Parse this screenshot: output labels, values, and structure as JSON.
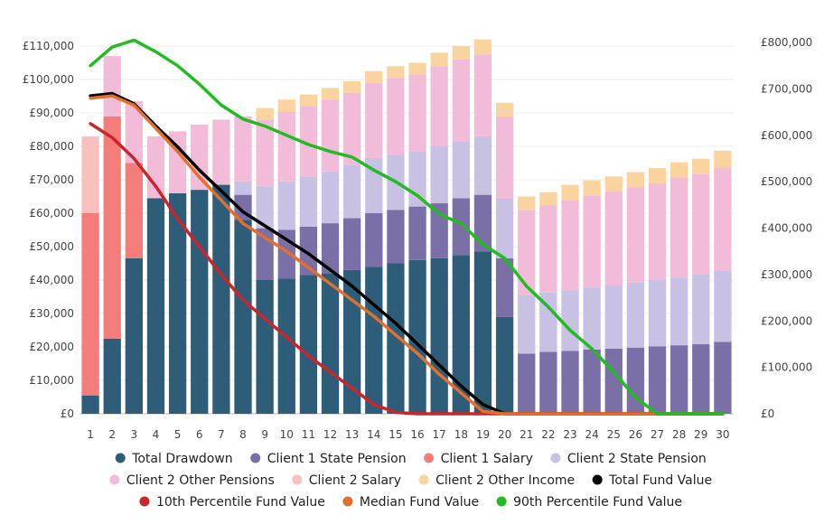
{
  "chart_data": {
    "type": "bar",
    "stacked": true,
    "categories": [
      "1",
      "2",
      "3",
      "4",
      "5",
      "6",
      "7",
      "8",
      "9",
      "10",
      "11",
      "12",
      "13",
      "14",
      "15",
      "16",
      "17",
      "18",
      "19",
      "20",
      "21",
      "22",
      "23",
      "24",
      "25",
      "26",
      "27",
      "28",
      "29",
      "30"
    ],
    "y_left": {
      "min": 0,
      "max": 110000,
      "ticks": [
        0,
        10000,
        20000,
        30000,
        40000,
        50000,
        60000,
        70000,
        80000,
        90000,
        100000,
        110000
      ],
      "tick_labels": [
        "£0",
        "£10,000",
        "£20,000",
        "£30,000",
        "£40,000",
        "£50,000",
        "£60,000",
        "£70,000",
        "£80,000",
        "£90,000",
        "£100,000",
        "£110,000"
      ]
    },
    "y_right": {
      "min": 0,
      "max": 800000,
      "ticks": [
        0,
        100000,
        200000,
        300000,
        400000,
        500000,
        600000,
        700000,
        800000
      ],
      "tick_labels": [
        "£0",
        "£100,000",
        "£200,000",
        "£300,000",
        "£400,000",
        "£500,000",
        "£600,000",
        "£700,000",
        "£800,000"
      ]
    },
    "grid": true,
    "legend_position": "bottom",
    "bar_series": [
      {
        "name": "Total Drawdown",
        "color": "#2e5d7a",
        "values": [
          5500,
          22500,
          46500,
          64500,
          66000,
          67000,
          68500,
          58000,
          40000,
          40500,
          41500,
          42000,
          43000,
          44000,
          45000,
          46000,
          46500,
          47500,
          48500,
          29000,
          0,
          0,
          0,
          0,
          0,
          0,
          0,
          0,
          0,
          0
        ]
      },
      {
        "name": "Client 1 State Pension",
        "color": "#7b6fa8",
        "values": [
          0,
          0,
          0,
          0,
          0,
          0,
          0,
          7500,
          15500,
          14500,
          14500,
          15000,
          15500,
          16000,
          16000,
          16000,
          16500,
          17000,
          17000,
          17500,
          18000,
          18500,
          18800,
          19200,
          19500,
          19800,
          20200,
          20500,
          20800,
          21500
        ]
      },
      {
        "name": "Client 1 Salary",
        "color": "#f47d79",
        "values": [
          54500,
          66500,
          28500,
          0,
          0,
          0,
          0,
          0,
          0,
          0,
          0,
          0,
          0,
          0,
          0,
          0,
          0,
          0,
          0,
          0,
          0,
          0,
          0,
          0,
          0,
          0,
          0,
          0,
          0,
          0
        ]
      },
      {
        "name": "Client 2 State Pension",
        "color": "#c8c1e4",
        "values": [
          0,
          0,
          0,
          0,
          0,
          0,
          0,
          4000,
          12500,
          14500,
          15000,
          15500,
          16000,
          16500,
          16500,
          16500,
          17000,
          17000,
          17500,
          18000,
          17500,
          17800,
          18200,
          18600,
          19000,
          19500,
          19800,
          20200,
          21000,
          21200
        ]
      },
      {
        "name": "Client 2 Other Pensions",
        "color": "#f2bcd9",
        "values": [
          0,
          18000,
          18500,
          18500,
          18500,
          19500,
          19500,
          19500,
          20000,
          21000,
          21000,
          21500,
          21500,
          22500,
          23000,
          23000,
          24000,
          24500,
          24500,
          24500,
          25500,
          26000,
          27000,
          27500,
          28000,
          28500,
          29000,
          30000,
          30000,
          31000
        ]
      },
      {
        "name": "Client 2 Salary",
        "color": "#f9c1bd",
        "values": [
          23000,
          0,
          0,
          0,
          0,
          0,
          0,
          0,
          0,
          0,
          0,
          0,
          0,
          0,
          0,
          0,
          0,
          0,
          0,
          0,
          0,
          0,
          0,
          0,
          0,
          0,
          0,
          0,
          0,
          0
        ]
      },
      {
        "name": "Client 2 Other Income",
        "color": "#fbd39e",
        "values": [
          0,
          0,
          0,
          0,
          0,
          0,
          0,
          0,
          3500,
          3500,
          3500,
          3500,
          3500,
          3500,
          3500,
          3500,
          4000,
          4000,
          4500,
          4000,
          4000,
          4000,
          4500,
          4500,
          4500,
          4500,
          4500,
          4500,
          4500,
          5000
        ]
      }
    ],
    "line_series": [
      {
        "name": "Total Fund Value",
        "color": "#000000",
        "values": [
          685000,
          690000,
          668000,
          620000,
          575000,
          525000,
          480000,
          435000,
          405000,
          375000,
          345000,
          310000,
          275000,
          235000,
          195000,
          150000,
          105000,
          60000,
          20000,
          0,
          0,
          0,
          0,
          0,
          0,
          0,
          0,
          0,
          0,
          0
        ]
      },
      {
        "name": "10th Percentile Fund Value",
        "color": "#c8262b",
        "values": [
          625000,
          595000,
          550000,
          490000,
          420000,
          360000,
          300000,
          245000,
          205000,
          165000,
          125000,
          90000,
          55000,
          20000,
          3000,
          0,
          0,
          0,
          0,
          0,
          0,
          0,
          0,
          0,
          0,
          0,
          0,
          0,
          0,
          0
        ]
      },
      {
        "name": "Median Fund Value",
        "color": "#e36f2c",
        "values": [
          680000,
          685000,
          665000,
          615000,
          565000,
          510000,
          460000,
          410000,
          380000,
          350000,
          315000,
          280000,
          245000,
          210000,
          170000,
          130000,
          85000,
          45000,
          5000,
          0,
          0,
          0,
          0,
          0,
          0,
          0,
          0,
          0,
          0,
          0
        ]
      },
      {
        "name": "90th Percentile Fund Value",
        "color": "#22bb22",
        "values": [
          750000,
          790000,
          805000,
          780000,
          750000,
          710000,
          665000,
          635000,
          620000,
          600000,
          580000,
          565000,
          553000,
          525000,
          500000,
          470000,
          430000,
          410000,
          365000,
          335000,
          275000,
          230000,
          180000,
          140000,
          90000,
          35000,
          0,
          0,
          0,
          0
        ]
      }
    ],
    "title": "",
    "xlabel": "",
    "ylabel": ""
  }
}
